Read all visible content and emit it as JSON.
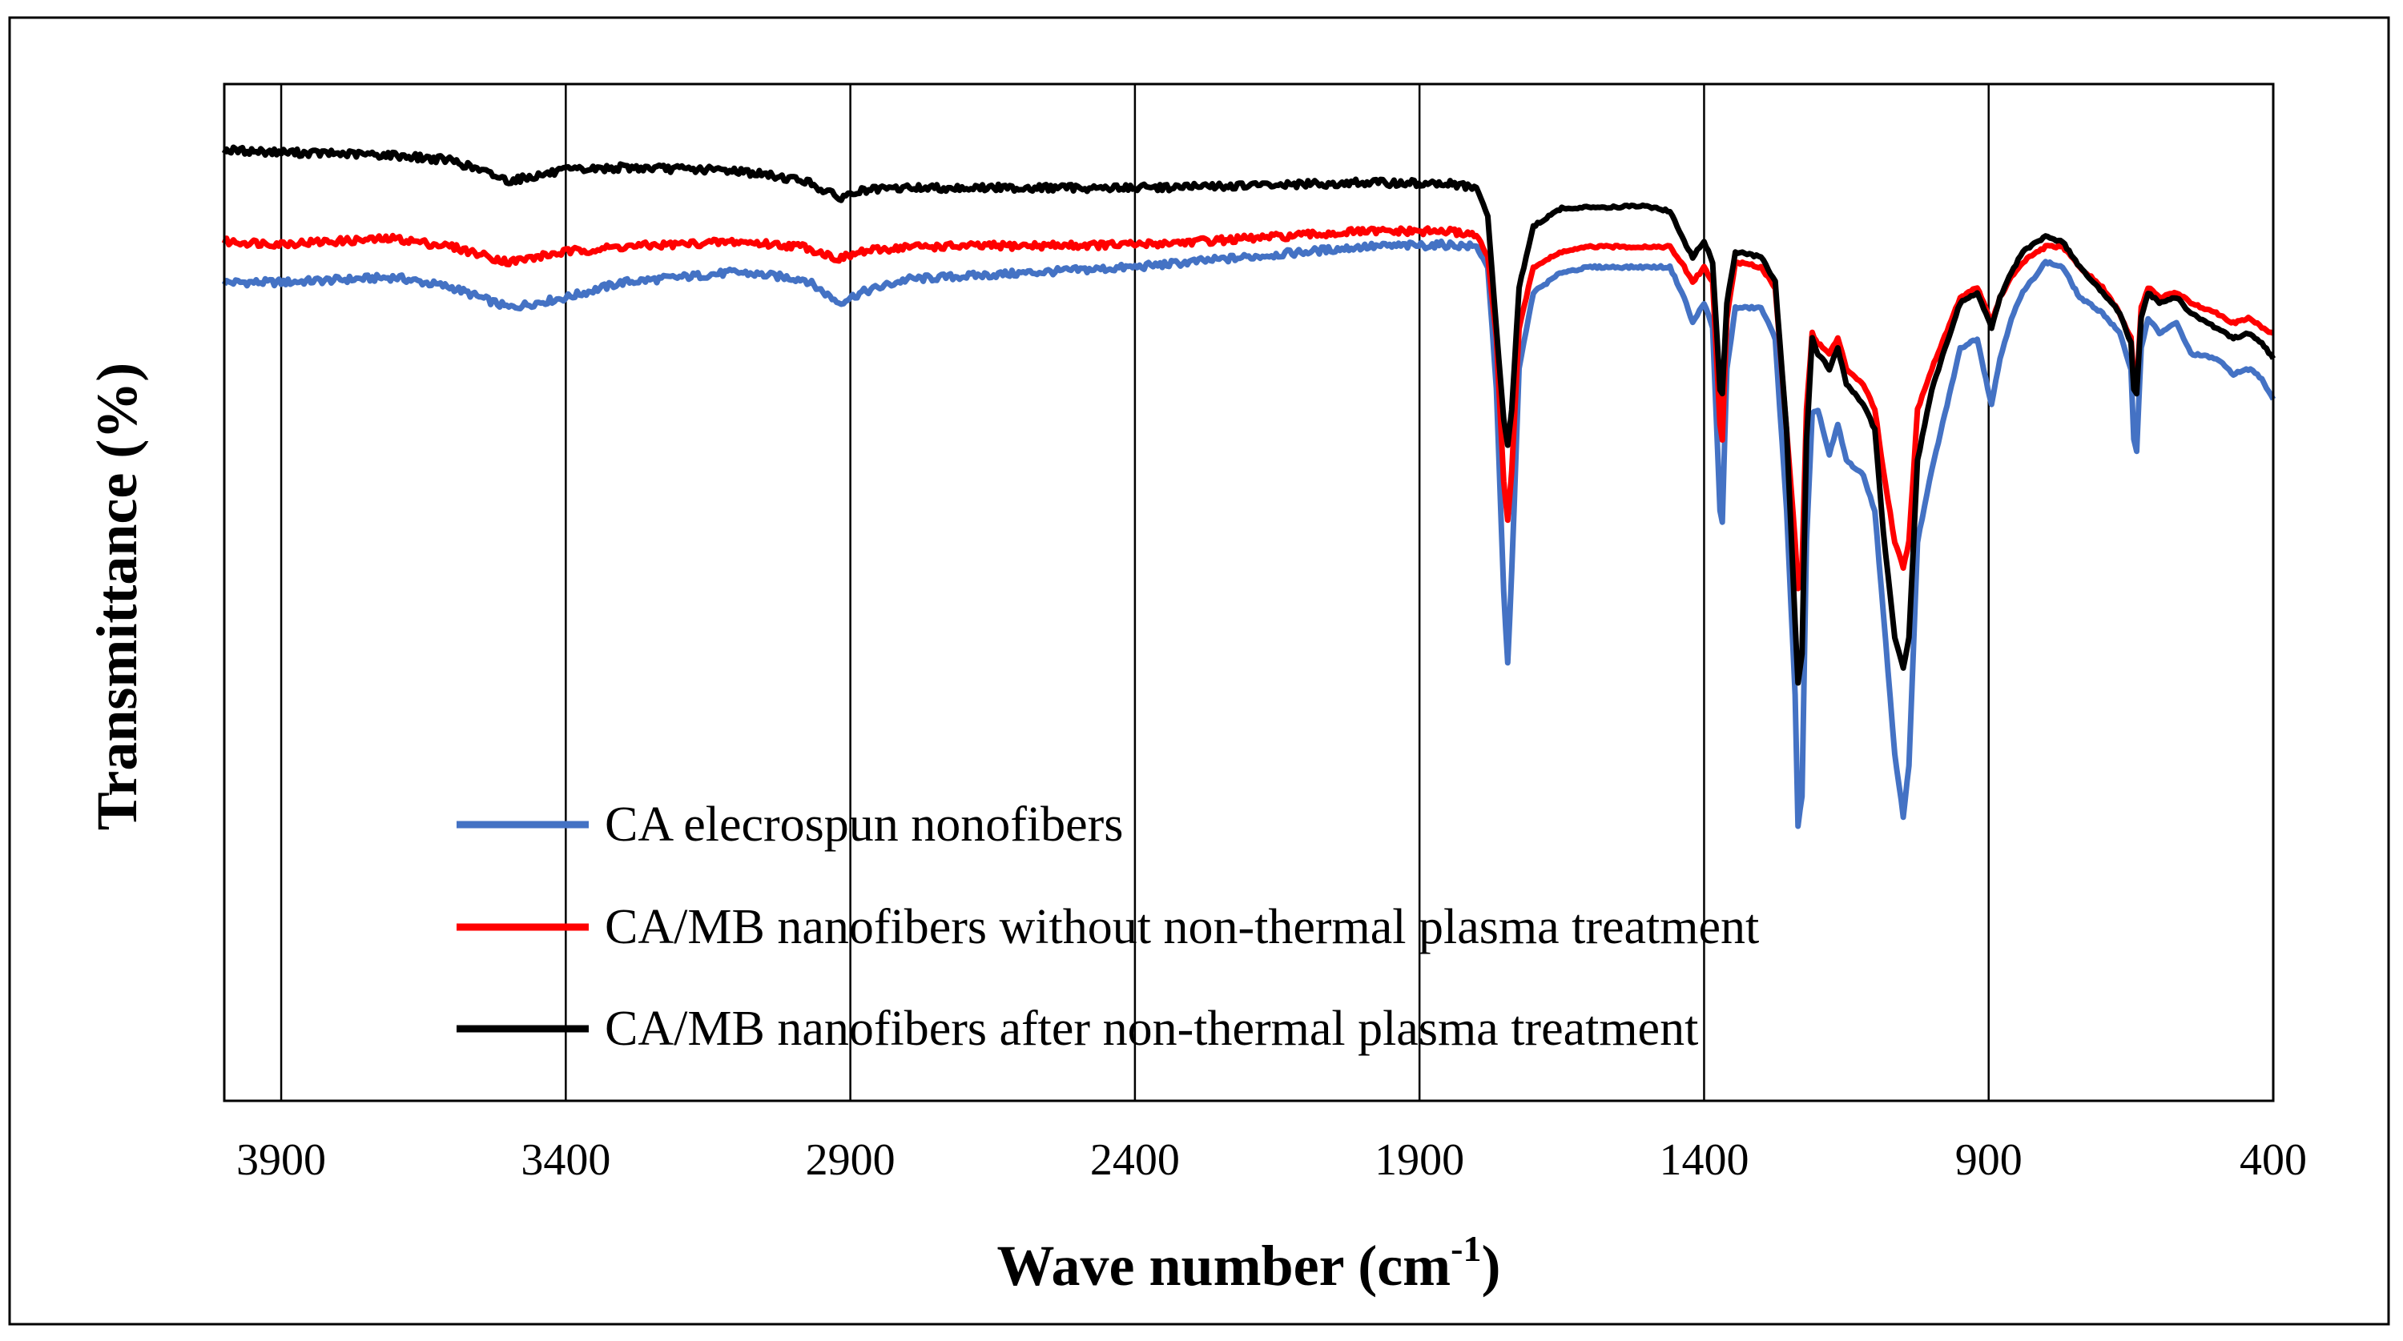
{
  "chart_data": {
    "type": "line",
    "title": "",
    "xlabel": "Wave number (cm-1)",
    "xlabel_main": "Wave number  (cm",
    "xlabel_sup": "-1",
    "xlabel_close": ")",
    "ylabel": "Transmittance  (%)",
    "x_reversed": true,
    "xlim": [
      4000,
      400
    ],
    "ylim": [
      0,
      100
    ],
    "y_ticks_shown": false,
    "xticks": [
      3900,
      3400,
      2900,
      2400,
      1900,
      1400,
      900,
      400
    ],
    "xtick_labels": [
      "3900",
      "3400",
      "2900",
      "2400",
      "1900",
      "1400",
      "900",
      "400"
    ],
    "grid": "vertical",
    "legend_position": "lower-left inside",
    "series": [
      {
        "name": "CA elecrospun nonofibers",
        "color": "#4472C4",
        "points": [
          [
            4000,
            80.5
          ],
          [
            3900,
            80.5
          ],
          [
            3700,
            81.0
          ],
          [
            3600,
            80.0
          ],
          [
            3500,
            78.0
          ],
          [
            3400,
            79.0
          ],
          [
            3300,
            80.5
          ],
          [
            3100,
            81.5
          ],
          [
            2980,
            80.8
          ],
          [
            2920,
            78.5
          ],
          [
            2880,
            79.5
          ],
          [
            2800,
            80.8
          ],
          [
            2400,
            82.0
          ],
          [
            2200,
            83.0
          ],
          [
            2000,
            84.0
          ],
          [
            1850,
            84.2
          ],
          [
            1800,
            84.0
          ],
          [
            1780,
            82.0
          ],
          [
            1765,
            70.0
          ],
          [
            1752,
            50.0
          ],
          [
            1745,
            43.0
          ],
          [
            1738,
            52.0
          ],
          [
            1725,
            72.0
          ],
          [
            1700,
            79.5
          ],
          [
            1650,
            81.5
          ],
          [
            1600,
            82.0
          ],
          [
            1460,
            82.0
          ],
          [
            1435,
            79.0
          ],
          [
            1420,
            76.5
          ],
          [
            1400,
            78.5
          ],
          [
            1385,
            76.0
          ],
          [
            1372,
            58.0
          ],
          [
            1368,
            57.0
          ],
          [
            1360,
            72.0
          ],
          [
            1345,
            78.0
          ],
          [
            1300,
            78.0
          ],
          [
            1275,
            75.0
          ],
          [
            1255,
            58.0
          ],
          [
            1240,
            40.0
          ],
          [
            1235,
            27.0
          ],
          [
            1228,
            30.0
          ],
          [
            1220,
            55.0
          ],
          [
            1210,
            67.5
          ],
          [
            1200,
            68.0
          ],
          [
            1180,
            63.5
          ],
          [
            1165,
            66.5
          ],
          [
            1150,
            63.0
          ],
          [
            1120,
            61.5
          ],
          [
            1100,
            58.0
          ],
          [
            1085,
            48.0
          ],
          [
            1065,
            34.0
          ],
          [
            1050,
            28.0
          ],
          [
            1040,
            33.0
          ],
          [
            1025,
            55.0
          ],
          [
            1000,
            62.0
          ],
          [
            950,
            74.0
          ],
          [
            920,
            75.0
          ],
          [
            905,
            71.0
          ],
          [
            895,
            68.5
          ],
          [
            880,
            73.0
          ],
          [
            860,
            77.0
          ],
          [
            840,
            79.5
          ],
          [
            800,
            82.5
          ],
          [
            770,
            82.0
          ],
          [
            740,
            79.0
          ],
          [
            700,
            77.5
          ],
          [
            670,
            75.5
          ],
          [
            650,
            72.0
          ],
          [
            645,
            65.0
          ],
          [
            640,
            64.0
          ],
          [
            632,
            74.0
          ],
          [
            620,
            77.0
          ],
          [
            600,
            75.5
          ],
          [
            570,
            76.5
          ],
          [
            545,
            73.5
          ],
          [
            500,
            73.0
          ],
          [
            470,
            71.5
          ],
          [
            440,
            72.0
          ],
          [
            420,
            71.0
          ],
          [
            400,
            69.0
          ]
        ]
      },
      {
        "name": "CA/MB nanofibers without non-thermal plasma treatment",
        "color": "#FF0000",
        "points": [
          [
            4000,
            84.5
          ],
          [
            3900,
            84.3
          ],
          [
            3700,
            84.8
          ],
          [
            3600,
            84.0
          ],
          [
            3500,
            82.5
          ],
          [
            3400,
            83.5
          ],
          [
            3300,
            84.0
          ],
          [
            3100,
            84.5
          ],
          [
            2980,
            84.0
          ],
          [
            2920,
            82.8
          ],
          [
            2880,
            83.5
          ],
          [
            2800,
            84.0
          ],
          [
            2400,
            84.2
          ],
          [
            2200,
            84.8
          ],
          [
            2000,
            85.5
          ],
          [
            1850,
            85.5
          ],
          [
            1800,
            85.2
          ],
          [
            1780,
            83.0
          ],
          [
            1765,
            75.0
          ],
          [
            1752,
            61.0
          ],
          [
            1745,
            57.0
          ],
          [
            1738,
            62.0
          ],
          [
            1725,
            76.0
          ],
          [
            1700,
            82.0
          ],
          [
            1650,
            83.5
          ],
          [
            1600,
            84.0
          ],
          [
            1460,
            84.0
          ],
          [
            1435,
            82.0
          ],
          [
            1420,
            80.5
          ],
          [
            1400,
            82.0
          ],
          [
            1385,
            80.5
          ],
          [
            1372,
            66.5
          ],
          [
            1368,
            65.0
          ],
          [
            1360,
            77.0
          ],
          [
            1345,
            82.5
          ],
          [
            1300,
            82.0
          ],
          [
            1275,
            80.0
          ],
          [
            1255,
            66.0
          ],
          [
            1240,
            55.0
          ],
          [
            1235,
            50.5
          ],
          [
            1228,
            52.5
          ],
          [
            1220,
            68.0
          ],
          [
            1210,
            75.5
          ],
          [
            1200,
            74.5
          ],
          [
            1180,
            73.5
          ],
          [
            1165,
            75.0
          ],
          [
            1150,
            72.0
          ],
          [
            1120,
            70.5
          ],
          [
            1100,
            68.0
          ],
          [
            1085,
            62.0
          ],
          [
            1065,
            55.0
          ],
          [
            1050,
            52.5
          ],
          [
            1040,
            55.0
          ],
          [
            1025,
            68.0
          ],
          [
            1000,
            72.0
          ],
          [
            950,
            79.0
          ],
          [
            920,
            80.0
          ],
          [
            905,
            78.0
          ],
          [
            895,
            76.5
          ],
          [
            880,
            79.0
          ],
          [
            860,
            81.0
          ],
          [
            840,
            82.5
          ],
          [
            800,
            84.0
          ],
          [
            770,
            84.0
          ],
          [
            740,
            82.0
          ],
          [
            700,
            80.0
          ],
          [
            670,
            77.5
          ],
          [
            650,
            75.0
          ],
          [
            645,
            71.0
          ],
          [
            640,
            70.0
          ],
          [
            632,
            78.0
          ],
          [
            620,
            80.0
          ],
          [
            600,
            79.0
          ],
          [
            570,
            79.5
          ],
          [
            545,
            78.5
          ],
          [
            500,
            77.5
          ],
          [
            470,
            76.5
          ],
          [
            440,
            77.0
          ],
          [
            420,
            76.0
          ],
          [
            400,
            75.5
          ]
        ]
      },
      {
        "name": "CA/MB nanofibers after non-thermal plasma treatment",
        "color": "#000000",
        "points": [
          [
            4000,
            93.5
          ],
          [
            3900,
            93.3
          ],
          [
            3700,
            93.0
          ],
          [
            3600,
            92.5
          ],
          [
            3500,
            90.5
          ],
          [
            3400,
            91.5
          ],
          [
            3300,
            91.8
          ],
          [
            3100,
            91.5
          ],
          [
            2980,
            90.5
          ],
          [
            2920,
            88.8
          ],
          [
            2880,
            89.5
          ],
          [
            2800,
            89.8
          ],
          [
            2400,
            89.8
          ],
          [
            2200,
            90.0
          ],
          [
            2000,
            90.3
          ],
          [
            1850,
            90.2
          ],
          [
            1800,
            89.8
          ],
          [
            1780,
            87.0
          ],
          [
            1765,
            76.0
          ],
          [
            1752,
            67.0
          ],
          [
            1745,
            64.5
          ],
          [
            1738,
            68.0
          ],
          [
            1725,
            80.0
          ],
          [
            1700,
            86.0
          ],
          [
            1650,
            87.8
          ],
          [
            1500,
            88.0
          ],
          [
            1460,
            87.5
          ],
          [
            1435,
            84.5
          ],
          [
            1420,
            83.0
          ],
          [
            1400,
            84.5
          ],
          [
            1385,
            82.5
          ],
          [
            1372,
            70.0
          ],
          [
            1368,
            69.5
          ],
          [
            1360,
            78.5
          ],
          [
            1345,
            83.5
          ],
          [
            1300,
            83.0
          ],
          [
            1275,
            80.5
          ],
          [
            1255,
            66.0
          ],
          [
            1240,
            47.0
          ],
          [
            1235,
            41.0
          ],
          [
            1228,
            44.0
          ],
          [
            1220,
            65.0
          ],
          [
            1210,
            75.0
          ],
          [
            1200,
            73.5
          ],
          [
            1180,
            72.0
          ],
          [
            1165,
            74.0
          ],
          [
            1150,
            70.5
          ],
          [
            1120,
            68.5
          ],
          [
            1100,
            66.0
          ],
          [
            1085,
            56.0
          ],
          [
            1065,
            45.5
          ],
          [
            1050,
            42.5
          ],
          [
            1040,
            45.5
          ],
          [
            1025,
            63.0
          ],
          [
            1000,
            70.0
          ],
          [
            950,
            78.5
          ],
          [
            920,
            79.5
          ],
          [
            905,
            77.5
          ],
          [
            895,
            76.0
          ],
          [
            880,
            79.0
          ],
          [
            860,
            81.5
          ],
          [
            840,
            83.5
          ],
          [
            800,
            85.0
          ],
          [
            770,
            84.5
          ],
          [
            740,
            82.0
          ],
          [
            700,
            79.5
          ],
          [
            670,
            77.5
          ],
          [
            650,
            74.5
          ],
          [
            645,
            70.0
          ],
          [
            640,
            69.5
          ],
          [
            632,
            77.0
          ],
          [
            620,
            79.5
          ],
          [
            600,
            78.5
          ],
          [
            570,
            79.0
          ],
          [
            545,
            77.5
          ],
          [
            500,
            76.0
          ],
          [
            470,
            75.0
          ],
          [
            440,
            75.5
          ],
          [
            420,
            74.5
          ],
          [
            400,
            73.0
          ]
        ]
      }
    ]
  }
}
